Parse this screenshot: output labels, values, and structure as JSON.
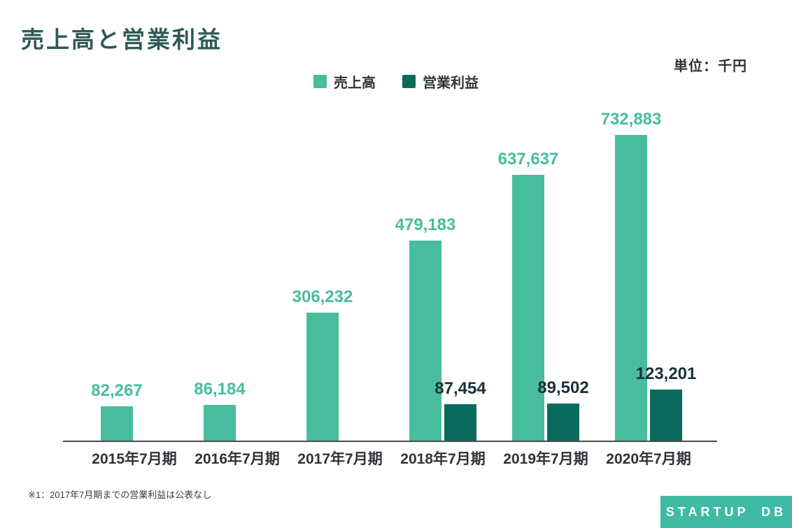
{
  "header": {
    "title": "売上高と営業利益",
    "unit_label": "単位：千円"
  },
  "legend": {
    "items": [
      {
        "label": "売上高",
        "color": "#47bd9d"
      },
      {
        "label": "営業利益",
        "color": "#0a6b5d"
      }
    ]
  },
  "chart_data": {
    "type": "bar",
    "title": "売上高と営業利益",
    "unit": "千円",
    "categories": [
      "2015年7月期",
      "2016年7月期",
      "2017年7月期",
      "2018年7月期",
      "2019年7月期",
      "2020年7月期"
    ],
    "series": [
      {
        "name": "売上高",
        "color": "#47bd9d",
        "values": [
          82267,
          86184,
          306232,
          479183,
          637637,
          732883
        ],
        "labels": [
          "82,267",
          "86,184",
          "306,232",
          "479,183",
          "637,637",
          "732,883"
        ]
      },
      {
        "name": "営業利益",
        "color": "#0a6b5d",
        "values": [
          null,
          null,
          null,
          87454,
          89502,
          123201
        ],
        "labels": [
          "",
          "",
          "",
          "87,454",
          "89,502",
          "123,201"
        ]
      }
    ],
    "ylim": [
      0,
      750000
    ],
    "grid": false,
    "legend_position": "top",
    "annotations": [
      "※1：2017年7月期までの営業利益は公表なし"
    ]
  },
  "footer": {
    "footnote": "※1：2017年7月期までの営業利益は公表なし",
    "logo_text": "STARTUP DB"
  }
}
